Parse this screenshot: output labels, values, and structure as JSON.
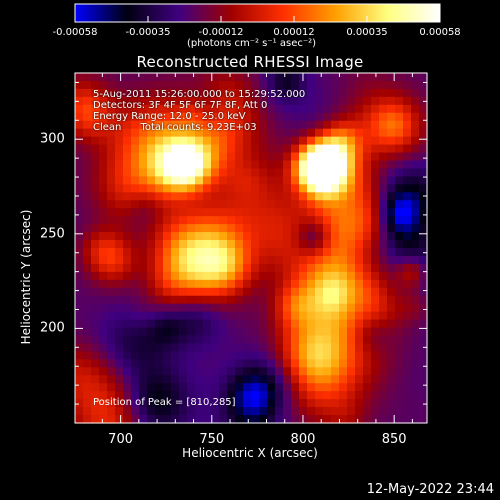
{
  "colorbar": {
    "tick_labels": [
      "-0.00058",
      "-0.00035",
      "-0.00012",
      "0.00012",
      "0.00035",
      "0.00058"
    ],
    "units": "(photons cm⁻² s⁻¹ asec⁻²)",
    "colors": [
      "#0000ff",
      "#000010",
      "#400080",
      "#a00000",
      "#ff3000",
      "#ffa000",
      "#ffff80",
      "#ffffff"
    ]
  },
  "title": "Reconstructed RHESSI Image",
  "info": {
    "time_range": "5-Aug-2011 15:26:00.000 to 15:29:52.000",
    "detectors": "Detectors: 3F 4F 5F 6F 7F 8F, Att 0",
    "energy_range": "Energy Range: 12.0 - 25.0 keV",
    "method": "Clean      Total counts: 9.23E+03"
  },
  "peak_label": "Position of Peak = [810,285]",
  "chart_data": {
    "type": "heatmap",
    "title": "Reconstructed RHESSI Image",
    "xlabel": "Heliocentric X (arcsec)",
    "ylabel": "Heliocentric Y (arcsec)",
    "x_ticks": [
      700,
      750,
      800,
      850
    ],
    "y_ticks": [
      200,
      250,
      300
    ],
    "xlim": [
      675,
      868
    ],
    "ylim": [
      150,
      335
    ],
    "value_range": [
      -0.00058,
      0.00058
    ],
    "peak_position": [
      810,
      285
    ]
  },
  "timestamp": "12-May-2022 23:44"
}
